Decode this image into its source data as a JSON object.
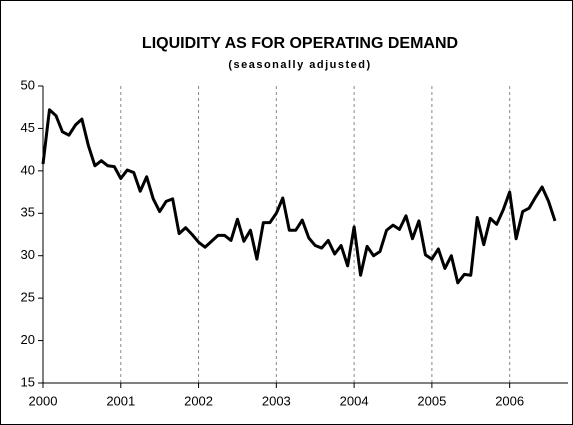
{
  "chart_data": {
    "type": "line",
    "title": "LIQUIDITY AS FOR OPERATING DEMAND",
    "subtitle": "(seasonally adjusted)",
    "x": [
      2000,
      2000.083,
      2000.167,
      2000.25,
      2000.333,
      2000.417,
      2000.5,
      2000.583,
      2000.667,
      2000.75,
      2000.833,
      2000.917,
      2001,
      2001.083,
      2001.167,
      2001.25,
      2001.333,
      2001.417,
      2001.5,
      2001.583,
      2001.667,
      2001.75,
      2001.833,
      2001.917,
      2002,
      2002.083,
      2002.167,
      2002.25,
      2002.333,
      2002.417,
      2002.5,
      2002.583,
      2002.667,
      2002.75,
      2002.833,
      2002.917,
      2003,
      2003.083,
      2003.167,
      2003.25,
      2003.333,
      2003.417,
      2003.5,
      2003.583,
      2003.667,
      2003.75,
      2003.833,
      2003.917,
      2004,
      2004.083,
      2004.167,
      2004.25,
      2004.333,
      2004.417,
      2004.5,
      2004.583,
      2004.667,
      2004.75,
      2004.833,
      2004.917,
      2005,
      2005.083,
      2005.167,
      2005.25,
      2005.333,
      2005.417,
      2005.5,
      2005.583,
      2005.667,
      2005.75,
      2005.833,
      2005.917,
      2006,
      2006.083,
      2006.167,
      2006.25,
      2006.333,
      2006.417,
      2006.5,
      2006.583
    ],
    "series": [
      {
        "name": "Liquidity",
        "color": "#000000",
        "values": [
          40.8,
          47.2,
          46.5,
          44.6,
          44.2,
          45.4,
          46.1,
          43.0,
          40.6,
          41.2,
          40.6,
          40.5,
          39.1,
          40.1,
          39.8,
          37.6,
          39.3,
          36.7,
          35.2,
          36.4,
          36.7,
          32.6,
          33.3,
          32.5,
          31.6,
          31.0,
          31.7,
          32.4,
          32.4,
          31.8,
          34.3,
          31.7,
          33.0,
          29.6,
          33.9,
          33.9,
          35.0,
          36.8,
          33.0,
          33.0,
          34.2,
          32.1,
          31.2,
          30.9,
          31.8,
          30.2,
          31.2,
          28.8,
          33.4,
          27.7,
          31.1,
          30.0,
          30.5,
          33.0,
          33.6,
          33.1,
          34.7,
          32.0,
          34.1,
          30.1,
          29.6,
          30.8,
          28.5,
          30.0,
          26.8,
          27.8,
          27.7,
          34.5,
          31.3,
          34.4,
          33.7,
          35.4,
          37.5,
          32.0,
          35.2,
          35.6,
          36.9,
          38.1,
          36.4,
          34.1
        ]
      }
    ],
    "xlim": [
      2000,
      2006.75
    ],
    "xticks": [
      2000,
      2001,
      2002,
      2003,
      2004,
      2005,
      2006
    ],
    "ylim": [
      15,
      50
    ],
    "yticks": [
      15,
      20,
      25,
      30,
      35,
      40,
      45,
      50
    ],
    "grid": true
  }
}
